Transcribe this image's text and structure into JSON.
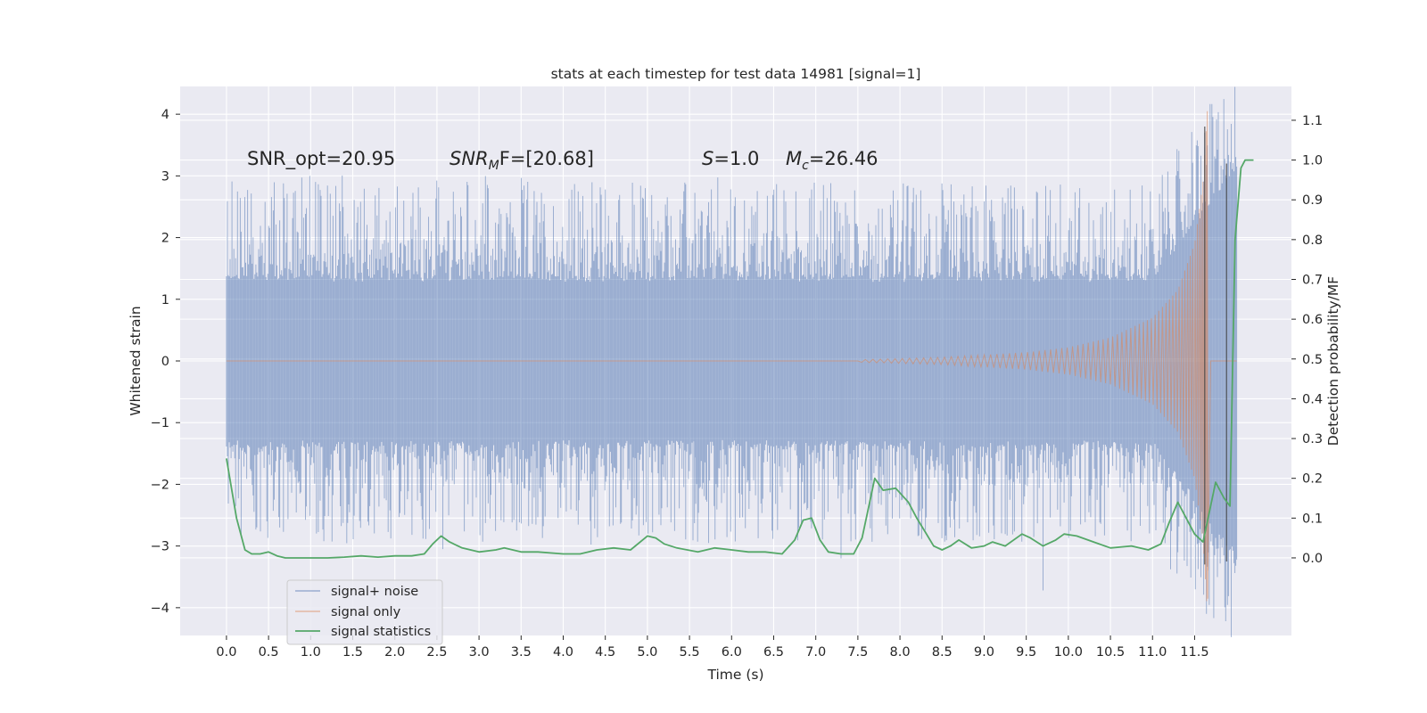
{
  "chart_data": {
    "type": "line",
    "title": "stats at each timestep for test data 14981 [signal=1]",
    "xlabel": "Time (s)",
    "ylabel": "Whitened strain",
    "y2label": "Detection probability/MF",
    "xlim": [
      -0.55,
      12.65
    ],
    "ylim": [
      -4.45,
      4.45
    ],
    "y2lim": [
      -0.195,
      1.185
    ],
    "x_ticks": [
      "0.0",
      "0.5",
      "1.0",
      "1.5",
      "2.0",
      "2.5",
      "3.0",
      "3.5",
      "4.0",
      "4.5",
      "5.0",
      "5.5",
      "6.0",
      "6.5",
      "7.0",
      "7.5",
      "8.0",
      "8.5",
      "9.0",
      "9.5",
      "10.0",
      "10.5",
      "11.0",
      "11.5"
    ],
    "y_ticks": [
      "4",
      "3",
      "2",
      "1",
      "0",
      "−1",
      "−2",
      "−3",
      "−4"
    ],
    "y2_ticks": [
      "1.1",
      "1.0",
      "0.9",
      "0.8",
      "0.7",
      "0.6",
      "0.5",
      "0.4",
      "0.3",
      "0.2",
      "0.1",
      "0.0"
    ],
    "grid": true,
    "legend_position": "lower-left",
    "annotations": {
      "snr_opt": "SNR_opt=20.95",
      "snr_mf_sym": "SNR",
      "snr_mf_sub": "M",
      "snr_mf_rest": "F=[20.68]",
      "s_sym": "S",
      "s_rest": "=1.0",
      "mc_sym": "M",
      "mc_sub": "c",
      "mc_rest": "=26.46"
    },
    "series": [
      {
        "name": "signal+ noise",
        "color": "#4c72b0",
        "axis": "left",
        "t_range": [
          0.0,
          12.0
        ],
        "band": {
          "bulk": 1.28,
          "spike_max": 3.0
        },
        "extremes": [
          [
            0.99,
            3.0
          ],
          [
            2.57,
            -3.05
          ],
          [
            4.5,
            2.78
          ],
          [
            5.56,
            -2.63
          ],
          [
            6.95,
            2.78
          ],
          [
            7.3,
            -3.2
          ],
          [
            9.7,
            -3.72
          ],
          [
            11.3,
            -3.1
          ],
          [
            11.62,
            3.7
          ],
          [
            11.64,
            -4.1
          ]
        ]
      },
      {
        "name": "signal only",
        "color": "#dd8452",
        "axis": "left",
        "t_merger": 11.67,
        "points": [
          [
            7.5,
            0.02
          ],
          [
            8.5,
            0.06
          ],
          [
            9.5,
            0.14
          ],
          [
            10.0,
            0.22
          ],
          [
            10.5,
            0.38
          ],
          [
            11.0,
            0.7
          ],
          [
            11.3,
            1.15
          ],
          [
            11.5,
            1.9
          ],
          [
            11.6,
            2.9
          ],
          [
            11.65,
            4.05
          ],
          [
            11.67,
            -3.4
          ],
          [
            11.7,
            0.0
          ]
        ]
      },
      {
        "name": "signal statistics",
        "color": "#55a868",
        "axis": "right",
        "points": [
          [
            0.0,
            0.25
          ],
          [
            0.12,
            0.1
          ],
          [
            0.22,
            0.02
          ],
          [
            0.3,
            0.01
          ],
          [
            0.4,
            0.01
          ],
          [
            0.5,
            0.015
          ],
          [
            0.6,
            0.005
          ],
          [
            0.7,
            0.0
          ],
          [
            0.9,
            0.0
          ],
          [
            1.2,
            0.0
          ],
          [
            1.4,
            0.002
          ],
          [
            1.6,
            0.005
          ],
          [
            1.8,
            0.002
          ],
          [
            2.0,
            0.005
          ],
          [
            2.2,
            0.005
          ],
          [
            2.35,
            0.01
          ],
          [
            2.45,
            0.035
          ],
          [
            2.55,
            0.055
          ],
          [
            2.65,
            0.04
          ],
          [
            2.8,
            0.025
          ],
          [
            3.0,
            0.015
          ],
          [
            3.2,
            0.02
          ],
          [
            3.3,
            0.025
          ],
          [
            3.5,
            0.015
          ],
          [
            3.7,
            0.015
          ],
          [
            4.0,
            0.01
          ],
          [
            4.2,
            0.01
          ],
          [
            4.4,
            0.02
          ],
          [
            4.6,
            0.025
          ],
          [
            4.8,
            0.02
          ],
          [
            5.0,
            0.055
          ],
          [
            5.1,
            0.05
          ],
          [
            5.2,
            0.035
          ],
          [
            5.35,
            0.025
          ],
          [
            5.6,
            0.015
          ],
          [
            5.8,
            0.025
          ],
          [
            6.0,
            0.02
          ],
          [
            6.2,
            0.015
          ],
          [
            6.4,
            0.015
          ],
          [
            6.6,
            0.01
          ],
          [
            6.75,
            0.045
          ],
          [
            6.85,
            0.095
          ],
          [
            6.95,
            0.1
          ],
          [
            7.05,
            0.045
          ],
          [
            7.15,
            0.015
          ],
          [
            7.3,
            0.01
          ],
          [
            7.45,
            0.01
          ],
          [
            7.55,
            0.05
          ],
          [
            7.7,
            0.2
          ],
          [
            7.8,
            0.17
          ],
          [
            7.95,
            0.175
          ],
          [
            8.1,
            0.14
          ],
          [
            8.2,
            0.1
          ],
          [
            8.3,
            0.065
          ],
          [
            8.4,
            0.03
          ],
          [
            8.5,
            0.02
          ],
          [
            8.6,
            0.03
          ],
          [
            8.7,
            0.045
          ],
          [
            8.85,
            0.025
          ],
          [
            9.0,
            0.03
          ],
          [
            9.1,
            0.04
          ],
          [
            9.25,
            0.03
          ],
          [
            9.45,
            0.06
          ],
          [
            9.55,
            0.05
          ],
          [
            9.7,
            0.03
          ],
          [
            9.85,
            0.045
          ],
          [
            9.95,
            0.06
          ],
          [
            10.1,
            0.055
          ],
          [
            10.3,
            0.04
          ],
          [
            10.5,
            0.025
          ],
          [
            10.75,
            0.03
          ],
          [
            10.95,
            0.02
          ],
          [
            11.1,
            0.035
          ],
          [
            11.2,
            0.09
          ],
          [
            11.3,
            0.14
          ],
          [
            11.4,
            0.1
          ],
          [
            11.5,
            0.06
          ],
          [
            11.6,
            0.04
          ],
          [
            11.75,
            0.19
          ],
          [
            11.85,
            0.15
          ],
          [
            11.92,
            0.13
          ],
          [
            11.98,
            0.8
          ],
          [
            12.05,
            0.98
          ],
          [
            12.1,
            1.0
          ],
          [
            12.2,
            1.0
          ]
        ]
      }
    ]
  }
}
